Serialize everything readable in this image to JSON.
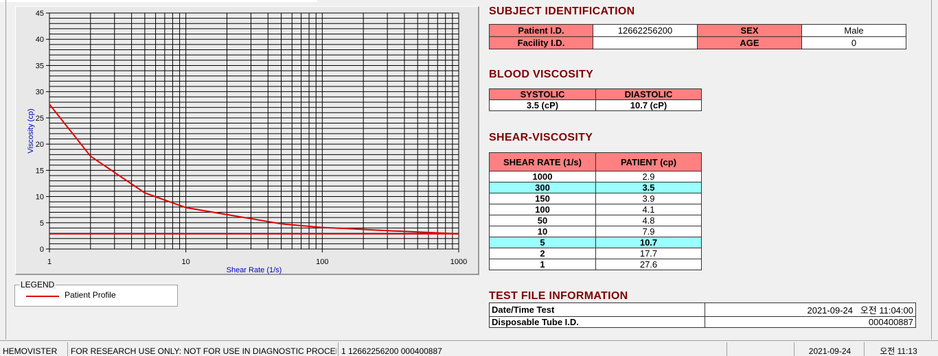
{
  "chart_data": {
    "type": "line",
    "xscale": "log",
    "xlabel": "Shear Rate (1/s)",
    "ylabel": "Viscosity (cp)",
    "xlim": [
      1,
      1000
    ],
    "ylim": [
      0,
      45
    ],
    "grid": true,
    "xticks": [
      "1",
      "10",
      "100",
      "1000"
    ],
    "yticks": [
      "0",
      "5",
      "10",
      "15",
      "20",
      "25",
      "30",
      "35",
      "40",
      "45"
    ],
    "series": [
      {
        "name": "Patient Profile",
        "color": "#e00000",
        "x": [
          1,
          2,
          5,
          10,
          50,
          100,
          150,
          300,
          1000
        ],
        "y": [
          27.6,
          17.7,
          10.7,
          7.9,
          4.8,
          4.1,
          3.9,
          3.5,
          2.9
        ]
      },
      {
        "color": "#e00000",
        "x": [
          1,
          1000
        ],
        "y": [
          2.9,
          2.9
        ]
      }
    ]
  },
  "legend": {
    "title": "LEGEND",
    "items": [
      {
        "label": "Patient Profile",
        "color": "#e00000"
      }
    ]
  },
  "subject": {
    "title": "SUBJECT IDENTIFICATION",
    "patient_id_label": "Patient I.D.",
    "patient_id": "12662256200",
    "sex_label": "SEX",
    "sex": "Male",
    "facility_label": "Facility I.D.",
    "facility": "",
    "age_label": "AGE",
    "age": "0"
  },
  "blood": {
    "title": "BLOOD VISCOSITY",
    "systolic_label": "SYSTOLIC",
    "diastolic_label": "DIASTOLIC",
    "systolic": "3.5 (cP)",
    "diastolic": "10.7 (cP)"
  },
  "shear": {
    "title": "SHEAR-VISCOSITY",
    "col1": "SHEAR RATE (1/s)",
    "col2": "PATIENT (cp)",
    "rows": [
      [
        "1000",
        "2.9"
      ],
      [
        "300",
        "3.5"
      ],
      [
        "150",
        "3.9"
      ],
      [
        "100",
        "4.1"
      ],
      [
        "50",
        "4.8"
      ],
      [
        "10",
        "7.9"
      ],
      [
        "5",
        "10.7"
      ],
      [
        "2",
        "17.7"
      ],
      [
        "1",
        "27.6"
      ]
    ],
    "highlight_color": "#99ffff"
  },
  "testfile": {
    "title": "TEST FILE INFORMATION",
    "date_label": "Date/Time Test",
    "date": "2021-09-24   오전 11:04:00",
    "tube_label": "Disposable Tube I.D.",
    "tube": "000400887"
  },
  "status": {
    "app": "HEMOVISTER",
    "notice": "FOR RESEARCH USE ONLY: NOT FOR USE IN DIAGNOSTIC PROCEDURES",
    "record": "1  12662256200  000400887",
    "blank": "",
    "date": "2021-09-24",
    "time": "오전 11:13"
  },
  "colors": {
    "title": "#800000",
    "header": "#ff8080",
    "highlight": "#99ffff"
  }
}
